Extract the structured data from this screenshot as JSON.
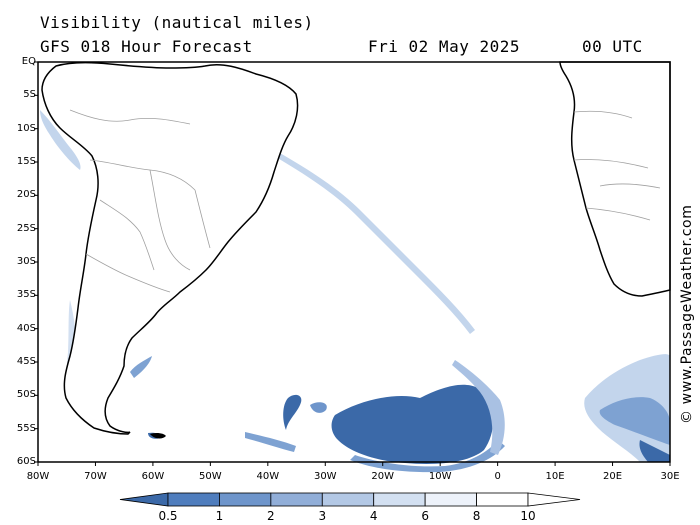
{
  "header": {
    "title": "Visibility (nautical miles)",
    "model": "GFS 018 Hour Forecast",
    "date": "Fri 02 May 2025",
    "time": "00 UTC"
  },
  "credit": "© www.PassageWeather.com",
  "axes": {
    "lat_labels": [
      "EQ",
      "5S",
      "10S",
      "15S",
      "20S",
      "25S",
      "30S",
      "35S",
      "40S",
      "45S",
      "50S",
      "55S",
      "60S"
    ],
    "lon_labels": [
      "80W",
      "70W",
      "60W",
      "50W",
      "40W",
      "30W",
      "20W",
      "10W",
      "0",
      "10E",
      "20E",
      "30E"
    ]
  },
  "colorbar": {
    "labels": [
      "0.5",
      "1",
      "2",
      "3",
      "4",
      "6",
      "8",
      "10"
    ],
    "colors": [
      "#3b69a8",
      "#4f7dbd",
      "#6e95cb",
      "#91aed8",
      "#b3c8e5",
      "#d3e0f1",
      "#edf2fa",
      "#ffffff"
    ]
  },
  "map": {
    "land_outline": "#000000",
    "border_color": "#a0a0a0",
    "fog_colors": {
      "dense": "#3b69a8",
      "medium": "#7ea2d2",
      "light": "#c3d5ec"
    }
  }
}
